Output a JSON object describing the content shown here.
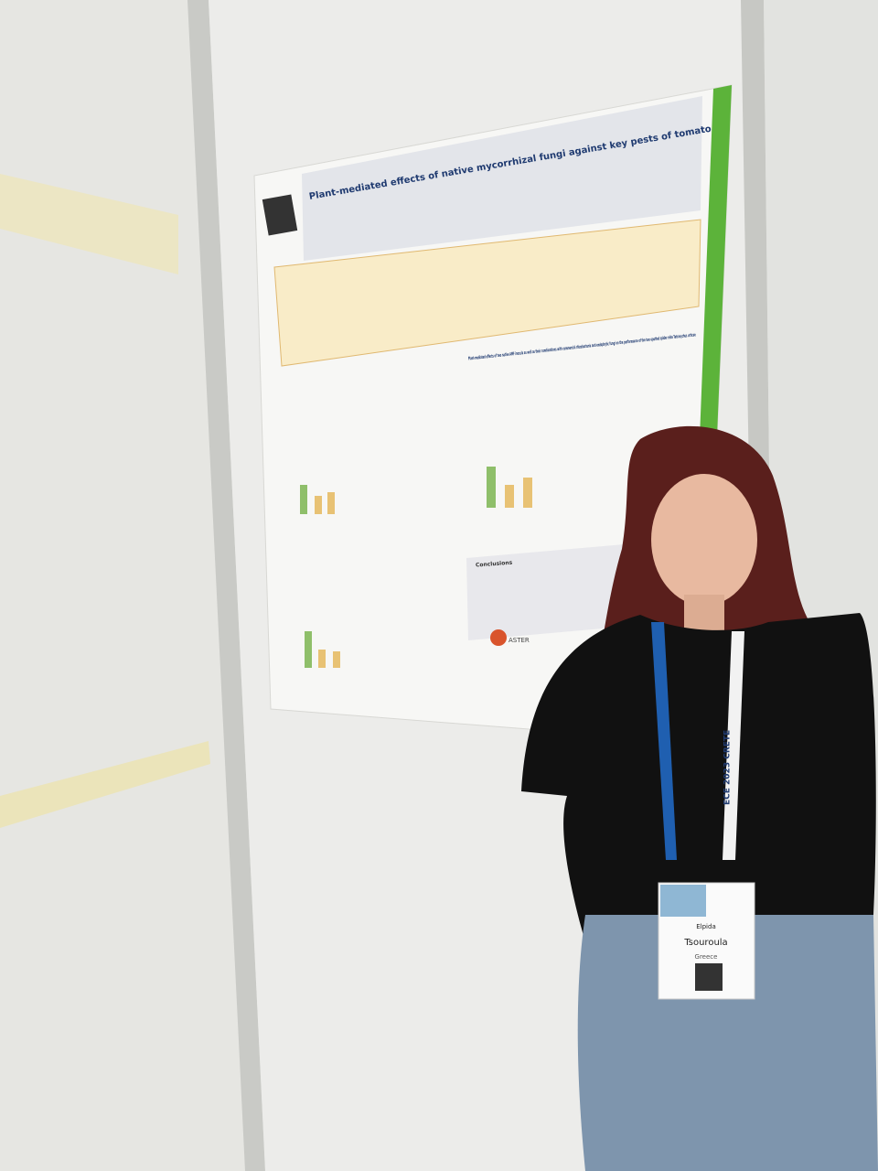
{
  "poster": {
    "title": "Plant-mediated effects of native mycorrhizal fungi against key pests of tomato",
    "section_title": "Plant-mediated effects of two native AMF inocula as well as their combinations with commercial rhizobacteria and endophytic fungi on the performance of the two-spotted spider mite Tetranychus urticae",
    "conclusions_heading": "Conclusions",
    "logo": "ASTER"
  },
  "badge": {
    "first_name": "Elpida",
    "last_name": "Tsouroula",
    "country": "Greece"
  },
  "lanyard": {
    "text": "ECE 2023 CRETE"
  }
}
